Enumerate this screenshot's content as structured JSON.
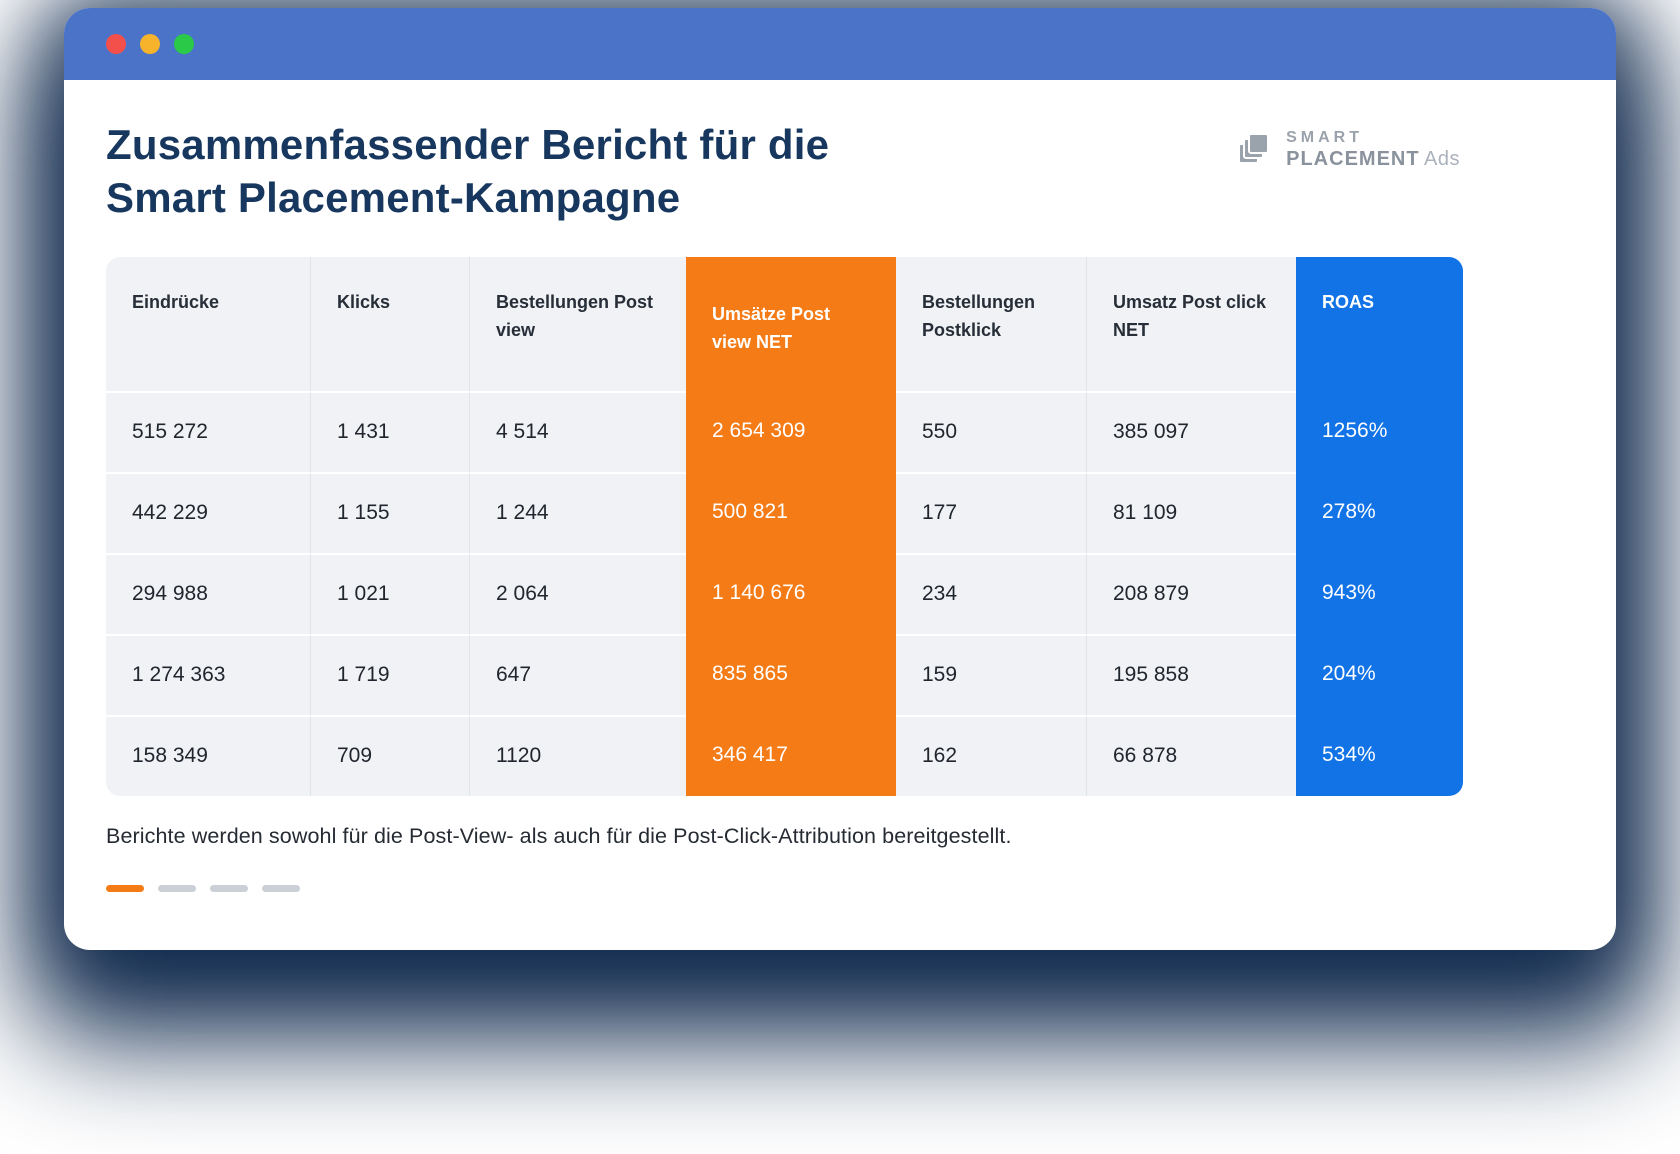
{
  "window": {
    "controls": [
      "close",
      "minimize",
      "zoom"
    ]
  },
  "header": {
    "title": "Zusammenfassender Bericht für die\nSmart Placement-Kampagne",
    "logo": {
      "top": "SMART",
      "bottom_bold": "PLACEMENT",
      "bottom_light": "Ads",
      "icon": "layers-icon"
    }
  },
  "table": {
    "columns": [
      {
        "label": "Eindrücke",
        "highlight": "none"
      },
      {
        "label": "Klicks",
        "highlight": "none"
      },
      {
        "label": "Bestellungen Post view",
        "highlight": "none"
      },
      {
        "label": "Umsätze Post view NET",
        "highlight": "orange"
      },
      {
        "label": "Bestellungen Postklick",
        "highlight": "none"
      },
      {
        "label": "Umsatz Post click NET",
        "highlight": "none"
      },
      {
        "label": "ROAS",
        "highlight": "blue"
      }
    ],
    "rows": [
      [
        "515 272",
        "1 431",
        "4 514",
        "2 654 309",
        "550",
        "385 097",
        "1256%"
      ],
      [
        "442 229",
        "1 155",
        "1 244",
        "500 821",
        "177",
        "81 109",
        "278%"
      ],
      [
        "294 988",
        "1 021",
        "2 064",
        "1 140 676",
        "234",
        "208 879",
        "943%"
      ],
      [
        "1 274 363",
        "1 719",
        "647",
        "835 865",
        "159",
        "195 858",
        "204%"
      ],
      [
        "158 349",
        "709",
        "1120",
        "346 417",
        "162",
        "66 878",
        "534%"
      ]
    ]
  },
  "footnote": "Berichte werden sowohl für die Post-View- als auch für die Post-Click-Attribution bereitgestellt.",
  "pagination": {
    "dashes": 4,
    "active_index": 0
  },
  "colors": {
    "accent_orange": "#F47B16",
    "accent_blue": "#1273E6",
    "titlebar_blue": "#4B74C8",
    "title_navy": "#17375E",
    "row_bg": "#F0F2F5",
    "header_bg": "#F0F2F5",
    "traffic_red": "#F4504B",
    "traffic_yellow": "#F6B32B",
    "traffic_green": "#2BC948"
  }
}
